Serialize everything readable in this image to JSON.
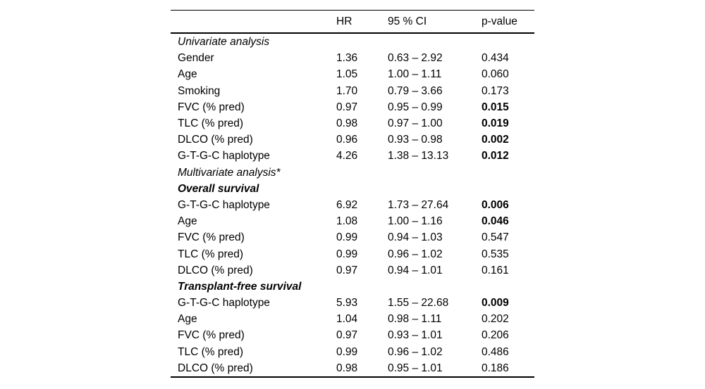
{
  "table": {
    "header": {
      "hr": "HR",
      "ci": "95 % CI",
      "p": "p-value"
    },
    "rows": [
      {
        "label": "Univariate analysis",
        "emphasis": "italic",
        "hr": "",
        "ci": "",
        "p": "",
        "p_bold": false
      },
      {
        "label": "Gender",
        "emphasis": "none",
        "hr": "1.36",
        "ci": "0.63 – 2.92",
        "p": "0.434",
        "p_bold": false
      },
      {
        "label": "Age",
        "emphasis": "none",
        "hr": "1.05",
        "ci": "1.00 – 1.11",
        "p": "0.060",
        "p_bold": false
      },
      {
        "label": "Smoking",
        "emphasis": "none",
        "hr": "1.70",
        "ci": "0.79 – 3.66",
        "p": "0.173",
        "p_bold": false
      },
      {
        "label": "FVC (% pred)",
        "emphasis": "none",
        "hr": "0.97",
        "ci": "0.95 – 0.99",
        "p": "0.015",
        "p_bold": true
      },
      {
        "label": "TLC (% pred)",
        "emphasis": "none",
        "hr": "0.98",
        "ci": "0.97 – 1.00",
        "p": "0.019",
        "p_bold": true
      },
      {
        "label": "DLCO (% pred)",
        "emphasis": "none",
        "hr": "0.96",
        "ci": "0.93 – 0.98",
        "p": "0.002",
        "p_bold": true
      },
      {
        "label": "G-T-G-C haplotype",
        "emphasis": "none",
        "hr": "4.26",
        "ci": "1.38 – 13.13",
        "p": "0.012",
        "p_bold": true
      },
      {
        "label": "Multivariate analysis*",
        "emphasis": "italic",
        "hr": "",
        "ci": "",
        "p": "",
        "p_bold": false
      },
      {
        "label": "Overall survival",
        "emphasis": "bold-italic",
        "hr": "",
        "ci": "",
        "p": "",
        "p_bold": false
      },
      {
        "label": "G-T-G-C haplotype",
        "emphasis": "none",
        "hr": "6.92",
        "ci": "1.73 – 27.64",
        "p": "0.006",
        "p_bold": true
      },
      {
        "label": "Age",
        "emphasis": "none",
        "hr": "1.08",
        "ci": "1.00 – 1.16",
        "p": "0.046",
        "p_bold": true
      },
      {
        "label": "FVC (% pred)",
        "emphasis": "none",
        "hr": "0.99",
        "ci": "0.94 – 1.03",
        "p": "0.547",
        "p_bold": false
      },
      {
        "label": "TLC (% pred)",
        "emphasis": "none",
        "hr": "0.99",
        "ci": "0.96 – 1.02",
        "p": "0.535",
        "p_bold": false
      },
      {
        "label": "DLCO (% pred)",
        "emphasis": "none",
        "hr": "0.97",
        "ci": "0.94 – 1.01",
        "p": "0.161",
        "p_bold": false
      },
      {
        "label": "Transplant-free survival",
        "emphasis": "bold-italic",
        "hr": "",
        "ci": "",
        "p": "",
        "p_bold": false
      },
      {
        "label": "G-T-G-C haplotype",
        "emphasis": "none",
        "hr": "5.93",
        "ci": "1.55 – 22.68",
        "p": "0.009",
        "p_bold": true
      },
      {
        "label": "Age",
        "emphasis": "none",
        "hr": "1.04",
        "ci": "0.98 – 1.11",
        "p": "0.202",
        "p_bold": false
      },
      {
        "label": "FVC (% pred)",
        "emphasis": "none",
        "hr": "0.97",
        "ci": "0.93 – 1.01",
        "p": "0.206",
        "p_bold": false
      },
      {
        "label": "TLC (% pred)",
        "emphasis": "none",
        "hr": "0.99",
        "ci": "0.96 – 1.02",
        "p": "0.486",
        "p_bold": false
      },
      {
        "label": "DLCO (% pred)",
        "emphasis": "none",
        "hr": "0.98",
        "ci": "0.95 – 1.01",
        "p": "0.186",
        "p_bold": false
      }
    ]
  }
}
